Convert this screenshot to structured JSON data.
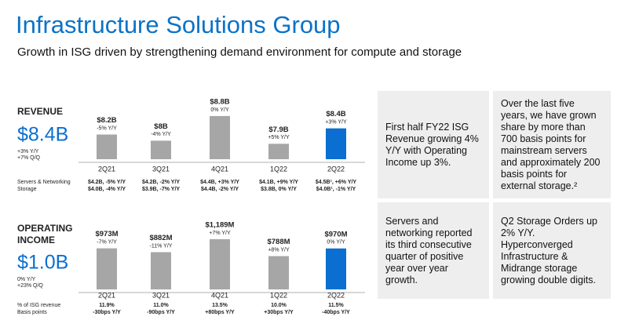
{
  "title": "Infrastructure Solutions Group",
  "subtitle": "Growth in ISG driven by strengthening demand environment for compute and storage",
  "chart_data": [
    {
      "type": "bar",
      "title_lines": [
        "REVENUE"
      ],
      "headline": "$8.4B",
      "headline_notes": [
        "+3% Y/Y",
        "+7% Q/Q"
      ],
      "categories": [
        "2Q21",
        "3Q21",
        "4Q21",
        "1Q22",
        "2Q22"
      ],
      "values": [
        8.2,
        8,
        8.8,
        7.9,
        8.4
      ],
      "value_labels": [
        "$8.2B",
        "$8B",
        "$8.8B",
        "$7.9B",
        "$8.4B"
      ],
      "change_labels": [
        "-5% Y/Y",
        "-4% Y/Y",
        "0% Y/Y",
        "+5% Y/Y",
        "+3% Y/Y"
      ],
      "colors": [
        "#a6a6a6",
        "#a6a6a6",
        "#a6a6a6",
        "#a6a6a6",
        "#0a6fd0"
      ],
      "ylim": [
        7.4,
        8.9
      ],
      "rows": [
        {
          "label": "Servers & Networking",
          "cells": [
            "$4.2B, -5% Y/Y",
            "$4.2B, -2% Y/Y",
            "$4.4B, +3% Y/Y",
            "$4.1B, +9% Y/Y",
            "$4.5B¹, +6% Y/Y"
          ]
        },
        {
          "label": "Storage",
          "cells": [
            "$4.0B, -4% Y/Y",
            "$3.9B, -7% Y/Y",
            "$4.4B, -2% Y/Y",
            "$3.8B, 0% Y/Y",
            "$4.0B¹, -1% Y/Y"
          ]
        }
      ]
    },
    {
      "type": "bar",
      "title_lines": [
        "OPERATING",
        "INCOME"
      ],
      "headline": "$1.0B",
      "headline_notes": [
        "0% Y/Y",
        "+23% Q/Q"
      ],
      "categories": [
        "2Q21",
        "3Q21",
        "4Q21",
        "1Q22",
        "2Q22"
      ],
      "values": [
        973,
        882,
        1189,
        788,
        970
      ],
      "value_labels": [
        "$973M",
        "$882M",
        "$1,189M",
        "$788M",
        "$970M"
      ],
      "change_labels": [
        "-7% Y/Y",
        "-11% Y/Y",
        "+7% Y/Y",
        "+8% Y/Y",
        "0% Y/Y"
      ],
      "colors": [
        "#a6a6a6",
        "#a6a6a6",
        "#a6a6a6",
        "#a6a6a6",
        "#0a6fd0"
      ],
      "ylim": [
        0,
        1300
      ],
      "rows": [
        {
          "label": "% of ISG revenue",
          "cells": [
            "11.9%",
            "11.0%",
            "13.5%",
            "10.0%",
            "11.5%"
          ]
        },
        {
          "label": "Basis points",
          "cells": [
            "-30bps Y/Y",
            "-90bps Y/Y",
            "+80bps Y/Y",
            "+30bps Y/Y",
            "-40bps Y/Y"
          ]
        }
      ]
    }
  ],
  "boxes": [
    "First half FY22 ISG Revenue growing 4% Y/Y with Operating Income up 3%.",
    "Over the last five years, we have grown share by more than 700 basis points for mainstream servers and approximately 200 basis points for external storage.²",
    "Servers and networking reported its third consecutive quarter of positive year over year growth.",
    "Q2 Storage Orders up 2% Y/Y. Hyperconverged Infrastructure & Midrange storage growing double digits."
  ]
}
